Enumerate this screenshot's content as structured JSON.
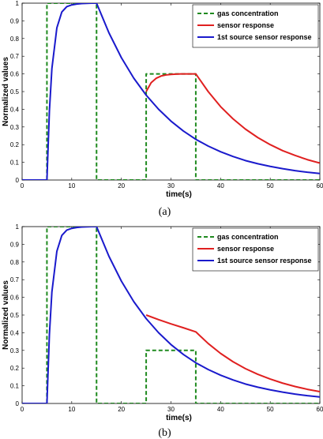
{
  "chart_data": [
    {
      "type": "line",
      "caption": "(a)",
      "xlabel": "time(s)",
      "ylabel": "Normalized values",
      "xlim": [
        0,
        60
      ],
      "ylim": [
        0,
        1
      ],
      "xticks": [
        0,
        10,
        20,
        30,
        40,
        50,
        60
      ],
      "yticks": [
        0,
        0.1,
        0.2,
        0.3,
        0.4,
        0.5,
        0.6,
        0.7,
        0.8,
        0.9,
        1
      ],
      "grid": false,
      "legend_position": "top-right",
      "series": [
        {
          "name": "gas concentration",
          "color": "#1f8a1f",
          "style": "dashed",
          "x": [
            0,
            5,
            5,
            15,
            15,
            25,
            25,
            35,
            35,
            60
          ],
          "y": [
            0,
            0,
            1,
            1,
            0,
            0,
            0.6,
            0.6,
            0,
            0
          ]
        },
        {
          "name": "sensor response",
          "color": "#e02020",
          "style": "solid",
          "x": [
            25,
            26,
            27,
            28,
            29,
            30,
            31,
            32,
            33,
            34,
            35,
            37.5,
            40,
            42.5,
            45,
            47.5,
            50,
            52.5,
            55,
            57.5,
            60
          ],
          "y": [
            0.5,
            0.55,
            0.575,
            0.588,
            0.594,
            0.597,
            0.599,
            0.6,
            0.6,
            0.6,
            0.6,
            0.5,
            0.415,
            0.346,
            0.288,
            0.24,
            0.2,
            0.166,
            0.139,
            0.115,
            0.096
          ]
        },
        {
          "name": "1st source sensor response",
          "color": "#1a1acc",
          "style": "solid",
          "x": [
            0,
            5,
            5.5,
            6,
            7,
            8,
            9,
            10,
            11,
            12,
            13,
            14,
            15,
            17.5,
            20,
            22.5,
            25,
            27.5,
            30,
            32.5,
            35,
            37.5,
            40,
            42.5,
            45,
            47.5,
            50,
            52.5,
            55,
            57.5,
            60
          ],
          "y": [
            0,
            0,
            0.39,
            0.63,
            0.86,
            0.95,
            0.98,
            0.99,
            0.995,
            0.998,
            0.999,
            1.0,
            1.0,
            0.832,
            0.692,
            0.576,
            0.48,
            0.4,
            0.333,
            0.277,
            0.23,
            0.192,
            0.16,
            0.133,
            0.11,
            0.092,
            0.077,
            0.064,
            0.053,
            0.044,
            0.037
          ]
        }
      ]
    },
    {
      "type": "line",
      "caption": "(b)",
      "xlabel": "time(s)",
      "ylabel": "Normalized values",
      "xlim": [
        0,
        60
      ],
      "ylim": [
        0,
        1
      ],
      "xticks": [
        0,
        10,
        20,
        30,
        40,
        50,
        60
      ],
      "yticks": [
        0,
        0.1,
        0.2,
        0.3,
        0.4,
        0.5,
        0.6,
        0.7,
        0.8,
        0.9,
        1
      ],
      "grid": false,
      "legend_position": "top-right",
      "series": [
        {
          "name": "gas concentration",
          "color": "#1f8a1f",
          "style": "dashed",
          "x": [
            0,
            5,
            5,
            15,
            15,
            25,
            25,
            35,
            35,
            60
          ],
          "y": [
            0,
            0,
            1,
            1,
            0,
            0,
            0.3,
            0.3,
            0,
            0
          ]
        },
        {
          "name": "sensor response",
          "color": "#e02020",
          "style": "solid",
          "x": [
            25,
            27.5,
            30,
            32.5,
            35,
            37.5,
            40,
            42.5,
            45,
            47.5,
            50,
            52.5,
            55,
            57.5,
            60
          ],
          "y": [
            0.5,
            0.474,
            0.45,
            0.428,
            0.405,
            0.339,
            0.283,
            0.236,
            0.197,
            0.165,
            0.138,
            0.115,
            0.096,
            0.08,
            0.067
          ]
        },
        {
          "name": "1st source sensor response",
          "color": "#1a1acc",
          "style": "solid",
          "x": [
            0,
            5,
            5.5,
            6,
            7,
            8,
            9,
            10,
            11,
            12,
            13,
            14,
            15,
            17.5,
            20,
            22.5,
            25,
            27.5,
            30,
            32.5,
            35,
            37.5,
            40,
            42.5,
            45,
            47.5,
            50,
            52.5,
            55,
            57.5,
            60
          ],
          "y": [
            0,
            0,
            0.39,
            0.63,
            0.86,
            0.95,
            0.98,
            0.99,
            0.995,
            0.998,
            0.999,
            1.0,
            1.0,
            0.832,
            0.692,
            0.576,
            0.48,
            0.4,
            0.333,
            0.277,
            0.23,
            0.192,
            0.16,
            0.133,
            0.11,
            0.092,
            0.077,
            0.064,
            0.053,
            0.044,
            0.037
          ]
        }
      ]
    }
  ]
}
